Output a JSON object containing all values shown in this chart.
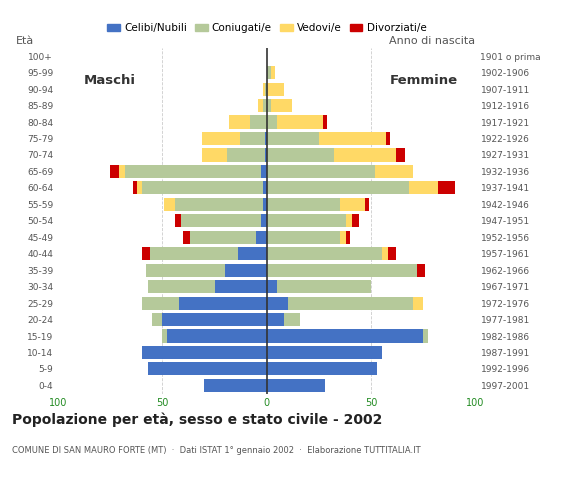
{
  "age_groups": [
    "0-4",
    "5-9",
    "10-14",
    "15-19",
    "20-24",
    "25-29",
    "30-34",
    "35-39",
    "40-44",
    "45-49",
    "50-54",
    "55-59",
    "60-64",
    "65-69",
    "70-74",
    "75-79",
    "80-84",
    "85-89",
    "90-94",
    "95-99",
    "100+"
  ],
  "birth_years": [
    "1997-2001",
    "1992-1996",
    "1987-1991",
    "1982-1986",
    "1977-1981",
    "1972-1976",
    "1967-1971",
    "1962-1966",
    "1957-1961",
    "1952-1956",
    "1947-1951",
    "1942-1946",
    "1937-1941",
    "1932-1936",
    "1927-1931",
    "1922-1926",
    "1917-1921",
    "1912-1916",
    "1907-1911",
    "1902-1906",
    "1901 o prima"
  ],
  "males": {
    "celibi": [
      30,
      57,
      60,
      48,
      50,
      42,
      25,
      20,
      14,
      5,
      3,
      2,
      2,
      3,
      1,
      1,
      0,
      0,
      0,
      0,
      0
    ],
    "coniugati": [
      0,
      0,
      0,
      2,
      5,
      18,
      32,
      38,
      42,
      32,
      38,
      42,
      58,
      65,
      18,
      12,
      8,
      2,
      1,
      0,
      0
    ],
    "vedovi": [
      0,
      0,
      0,
      0,
      0,
      0,
      0,
      0,
      0,
      0,
      0,
      5,
      2,
      3,
      12,
      18,
      10,
      2,
      1,
      0,
      0
    ],
    "divorziati": [
      0,
      0,
      0,
      0,
      0,
      0,
      0,
      0,
      4,
      3,
      3,
      0,
      2,
      4,
      0,
      0,
      0,
      0,
      0,
      0,
      0
    ]
  },
  "females": {
    "nubili": [
      28,
      53,
      55,
      75,
      8,
      10,
      5,
      0,
      0,
      0,
      0,
      0,
      0,
      0,
      0,
      0,
      0,
      0,
      0,
      0,
      0
    ],
    "coniugate": [
      0,
      0,
      0,
      2,
      8,
      60,
      45,
      72,
      55,
      35,
      38,
      35,
      68,
      52,
      32,
      25,
      5,
      2,
      0,
      2,
      0
    ],
    "vedove": [
      0,
      0,
      0,
      0,
      0,
      5,
      0,
      0,
      3,
      3,
      3,
      12,
      14,
      18,
      30,
      32,
      22,
      10,
      8,
      2,
      0
    ],
    "divorziate": [
      0,
      0,
      0,
      0,
      0,
      0,
      0,
      4,
      4,
      2,
      3,
      2,
      8,
      0,
      4,
      2,
      2,
      0,
      0,
      0,
      0
    ]
  },
  "colors": {
    "celibi": "#4472c4",
    "coniugati": "#b5c99a",
    "vedovi": "#ffd966",
    "divorziati": "#cc0000"
  },
  "title": "Popolazione per età, sesso e stato civile - 2002",
  "subtitle": "COMUNE DI SAN MAURO FORTE (MT)  ·  Dati ISTAT 1° gennaio 2002  ·  Elaborazione TUTTITALIA.IT",
  "ylabel_left": "Età",
  "ylabel_right": "Anno di nascita",
  "xlim": 100,
  "legend_labels": [
    "Celibi/Nubili",
    "Coniugati/e",
    "Vedovi/e",
    "Divorziati/e"
  ],
  "maschi_label": "Maschi",
  "femmine_label": "Femmine",
  "xtick_labels": [
    "100",
    "50",
    "0",
    "50",
    "100"
  ]
}
